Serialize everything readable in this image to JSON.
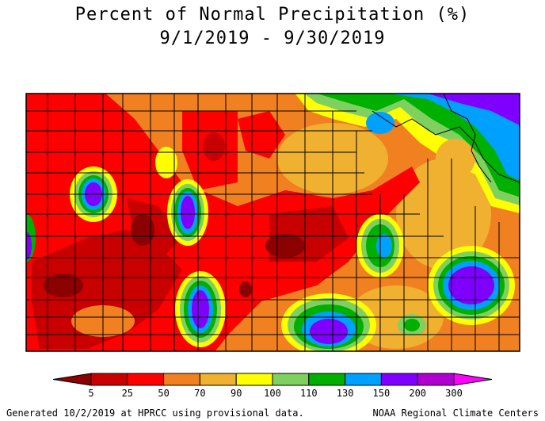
{
  "title_line1": "Percent of Normal Precipitation (%)",
  "title_line2": "9/1/2019 - 9/30/2019",
  "legend": {
    "tick_labels": [
      "5",
      "25",
      "50",
      "70",
      "90",
      "100",
      "110",
      "130",
      "150",
      "200",
      "300"
    ],
    "colors": [
      "#8b0000",
      "#c80000",
      "#ff0000",
      "#f08020",
      "#f0b030",
      "#ffff00",
      "#80d060",
      "#00b000",
      "#00a0ff",
      "#8000ff",
      "#b000d0",
      "#ff00ff"
    ]
  },
  "footer_left": "Generated 10/2/2019 at HPRCC using provisional data.",
  "footer_right": "NOAA Regional Climate Centers"
}
